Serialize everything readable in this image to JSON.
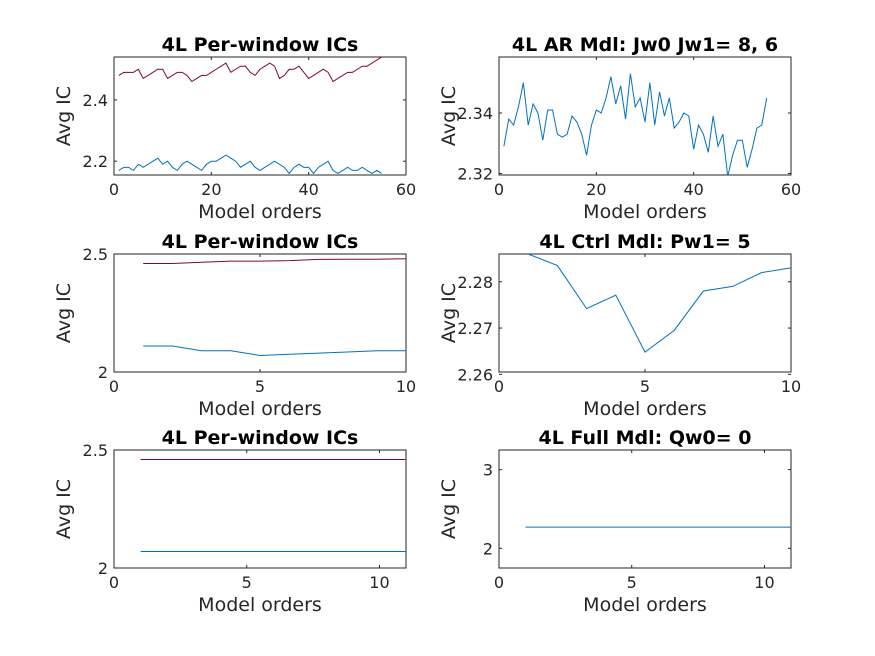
{
  "colors": {
    "series_blue": "#0072BD",
    "series_red": "#7E0A2E",
    "axis": "#262626"
  },
  "chart_data": [
    {
      "type": "line",
      "title": "4L Per-window ICs",
      "xlabel": "Model orders",
      "ylabel": "Avg IC",
      "xlim": [
        0,
        60
      ],
      "ylim": [
        2.155,
        2.54
      ],
      "xticks": [
        0,
        20,
        40,
        60
      ],
      "yticks": [
        2.2,
        2.4
      ],
      "ytick_labels": [
        "2.2",
        "2.4"
      ],
      "series": [
        {
          "color": "#7E0A2E",
          "x": [
            1,
            2,
            3,
            4,
            5,
            6,
            7,
            8,
            9,
            10,
            11,
            12,
            13,
            14,
            15,
            16,
            17,
            18,
            19,
            20,
            21,
            22,
            23,
            24,
            25,
            26,
            27,
            28,
            29,
            30,
            31,
            32,
            33,
            34,
            35,
            36,
            37,
            38,
            39,
            40,
            41,
            42,
            43,
            44,
            45,
            46,
            47,
            48,
            49,
            50,
            51,
            52,
            53,
            54,
            55
          ],
          "y": [
            2.48,
            2.49,
            2.49,
            2.49,
            2.5,
            2.47,
            2.48,
            2.49,
            2.5,
            2.5,
            2.47,
            2.48,
            2.49,
            2.49,
            2.48,
            2.46,
            2.47,
            2.48,
            2.48,
            2.49,
            2.5,
            2.51,
            2.52,
            2.49,
            2.5,
            2.51,
            2.51,
            2.49,
            2.48,
            2.5,
            2.51,
            2.52,
            2.51,
            2.47,
            2.48,
            2.5,
            2.5,
            2.51,
            2.49,
            2.47,
            2.48,
            2.49,
            2.5,
            2.49,
            2.46,
            2.47,
            2.48,
            2.49,
            2.49,
            2.5,
            2.51,
            2.51,
            2.52,
            2.53,
            2.54
          ]
        },
        {
          "color": "#0072BD",
          "x": [
            1,
            2,
            3,
            4,
            5,
            6,
            7,
            8,
            9,
            10,
            11,
            12,
            13,
            14,
            15,
            16,
            17,
            18,
            19,
            20,
            21,
            22,
            23,
            24,
            25,
            26,
            27,
            28,
            29,
            30,
            31,
            32,
            33,
            34,
            35,
            36,
            37,
            38,
            39,
            40,
            41,
            42,
            43,
            44,
            45,
            46,
            47,
            48,
            49,
            50,
            51,
            52,
            53,
            54,
            55
          ],
          "y": [
            2.17,
            2.18,
            2.18,
            2.17,
            2.19,
            2.18,
            2.19,
            2.2,
            2.21,
            2.19,
            2.2,
            2.18,
            2.17,
            2.19,
            2.2,
            2.19,
            2.18,
            2.17,
            2.19,
            2.2,
            2.2,
            2.21,
            2.22,
            2.21,
            2.2,
            2.18,
            2.19,
            2.2,
            2.18,
            2.17,
            2.18,
            2.19,
            2.2,
            2.19,
            2.18,
            2.16,
            2.18,
            2.19,
            2.18,
            2.18,
            2.16,
            2.18,
            2.19,
            2.2,
            2.17,
            2.16,
            2.17,
            2.18,
            2.17,
            2.17,
            2.18,
            2.17,
            2.16,
            2.17,
            2.16
          ]
        }
      ]
    },
    {
      "type": "line",
      "title": "4L AR Mdl: Jw0 Jw1= 8, 6",
      "xlabel": "Model orders",
      "ylabel": "Avg IC",
      "xlim": [
        0,
        60
      ],
      "ylim": [
        2.3195,
        2.3585
      ],
      "xticks": [
        0,
        20,
        40,
        60
      ],
      "yticks": [
        2.32,
        2.34
      ],
      "ytick_labels": [
        "2.32",
        "2.34"
      ],
      "series": [
        {
          "color": "#0072BD",
          "x": [
            1,
            2,
            3,
            4,
            5,
            6,
            7,
            8,
            9,
            10,
            11,
            12,
            13,
            14,
            15,
            16,
            17,
            18,
            19,
            20,
            21,
            22,
            23,
            24,
            25,
            26,
            27,
            28,
            29,
            30,
            31,
            32,
            33,
            34,
            35,
            36,
            37,
            38,
            39,
            40,
            41,
            42,
            43,
            44,
            45,
            46,
            47,
            48,
            49,
            50,
            51,
            52,
            53,
            54,
            55
          ],
          "y": [
            2.329,
            2.338,
            2.336,
            2.342,
            2.35,
            2.336,
            2.343,
            2.34,
            2.331,
            2.341,
            2.341,
            2.333,
            2.332,
            2.333,
            2.339,
            2.337,
            2.333,
            2.326,
            2.336,
            2.341,
            2.34,
            2.345,
            2.352,
            2.343,
            2.349,
            2.338,
            2.353,
            2.342,
            2.345,
            2.337,
            2.35,
            2.336,
            2.347,
            2.339,
            2.345,
            2.335,
            2.337,
            2.34,
            2.339,
            2.328,
            2.336,
            2.333,
            2.327,
            2.339,
            2.329,
            2.333,
            2.319,
            2.326,
            2.331,
            2.331,
            2.322,
            2.328,
            2.335,
            2.336,
            2.345
          ]
        }
      ]
    },
    {
      "type": "line",
      "title": "4L Per-window ICs",
      "xlabel": "Model orders",
      "ylabel": "Avg IC",
      "xlim": [
        0,
        10
      ],
      "ylim": [
        2.0,
        2.5
      ],
      "xticks": [
        0,
        5,
        10
      ],
      "yticks": [
        2.0,
        2.5
      ],
      "ytick_labels": [
        "2",
        "2.5"
      ],
      "series": [
        {
          "color": "#7E0A2E",
          "x": [
            1,
            2,
            3,
            4,
            5,
            6,
            7,
            8,
            9,
            10
          ],
          "y": [
            2.46,
            2.46,
            2.465,
            2.47,
            2.47,
            2.472,
            2.477,
            2.478,
            2.478,
            2.48
          ]
        },
        {
          "color": "#0072BD",
          "x": [
            1,
            2,
            3,
            4,
            5,
            6,
            7,
            8,
            9,
            10
          ],
          "y": [
            2.11,
            2.11,
            2.09,
            2.09,
            2.07,
            2.075,
            2.08,
            2.085,
            2.09,
            2.09
          ]
        }
      ]
    },
    {
      "type": "line",
      "title": "4L Ctrl Mdl: Pw1= 5",
      "xlabel": "Model orders",
      "ylabel": "Avg IC",
      "xlim": [
        0,
        10
      ],
      "ylim": [
        2.2605,
        2.286
      ],
      "xticks": [
        0,
        5,
        10
      ],
      "yticks": [
        2.26,
        2.27,
        2.28
      ],
      "ytick_labels": [
        "2.26",
        "2.27",
        "2.28"
      ],
      "series": [
        {
          "color": "#0072BD",
          "x": [
            1,
            2,
            3,
            4,
            5,
            6,
            7,
            8,
            9,
            10
          ],
          "y": [
            2.286,
            2.2835,
            2.2742,
            2.2771,
            2.2648,
            2.2695,
            2.278,
            2.279,
            2.282,
            2.283
          ]
        }
      ]
    },
    {
      "type": "line",
      "title": "4L Per-window ICs",
      "xlabel": "Model orders",
      "ylabel": "Avg IC",
      "xlim": [
        0,
        11
      ],
      "ylim": [
        2.0,
        2.5
      ],
      "xticks": [
        0,
        5,
        10
      ],
      "yticks": [
        2.0,
        2.5
      ],
      "ytick_labels": [
        "2",
        "2.5"
      ],
      "series": [
        {
          "color": "#7E0A2E",
          "x": [
            1,
            11
          ],
          "y": [
            2.46,
            2.46
          ]
        },
        {
          "color": "#0072BD",
          "x": [
            1,
            11
          ],
          "y": [
            2.07,
            2.07
          ]
        }
      ]
    },
    {
      "type": "line",
      "title": "4L Full Mdl: Qw0= 0",
      "xlabel": "Model orders",
      "ylabel": "Avg IC",
      "xlim": [
        0,
        11
      ],
      "ylim": [
        1.75,
        3.25
      ],
      "xticks": [
        0,
        5,
        10
      ],
      "yticks": [
        2,
        3
      ],
      "ytick_labels": [
        "2",
        "3"
      ],
      "series": [
        {
          "color": "#0072BD",
          "x": [
            1,
            11
          ],
          "y": [
            2.27,
            2.27
          ]
        }
      ]
    }
  ]
}
